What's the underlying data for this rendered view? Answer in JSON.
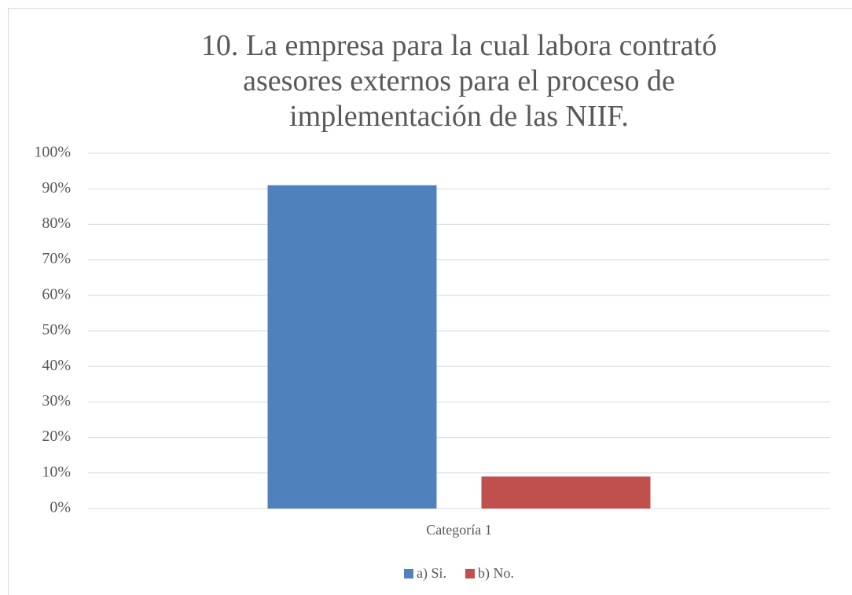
{
  "chart_data": {
    "type": "bar",
    "title": "10. La empresa para la cual labora contrató asesores externos para el proceso de implementación de las NIIF.",
    "categories": [
      "Categoría 1"
    ],
    "series": [
      {
        "name": "a) Si.",
        "color": "#4f81bd",
        "values": [
          91
        ]
      },
      {
        "name": "b) No.",
        "color": "#c0504d",
        "values": [
          9
        ]
      }
    ],
    "ylim": [
      0,
      100
    ],
    "yticks": [
      {
        "value": 0,
        "label": "0%"
      },
      {
        "value": 10,
        "label": "10%"
      },
      {
        "value": 20,
        "label": "20%"
      },
      {
        "value": 30,
        "label": "30%"
      },
      {
        "value": 40,
        "label": "40%"
      },
      {
        "value": 50,
        "label": "50%"
      },
      {
        "value": 60,
        "label": "60%"
      },
      {
        "value": 70,
        "label": "70%"
      },
      {
        "value": 80,
        "label": "80%"
      },
      {
        "value": 90,
        "label": "90%"
      },
      {
        "value": 100,
        "label": "100%"
      }
    ],
    "grid": true,
    "legend": "bottom"
  }
}
